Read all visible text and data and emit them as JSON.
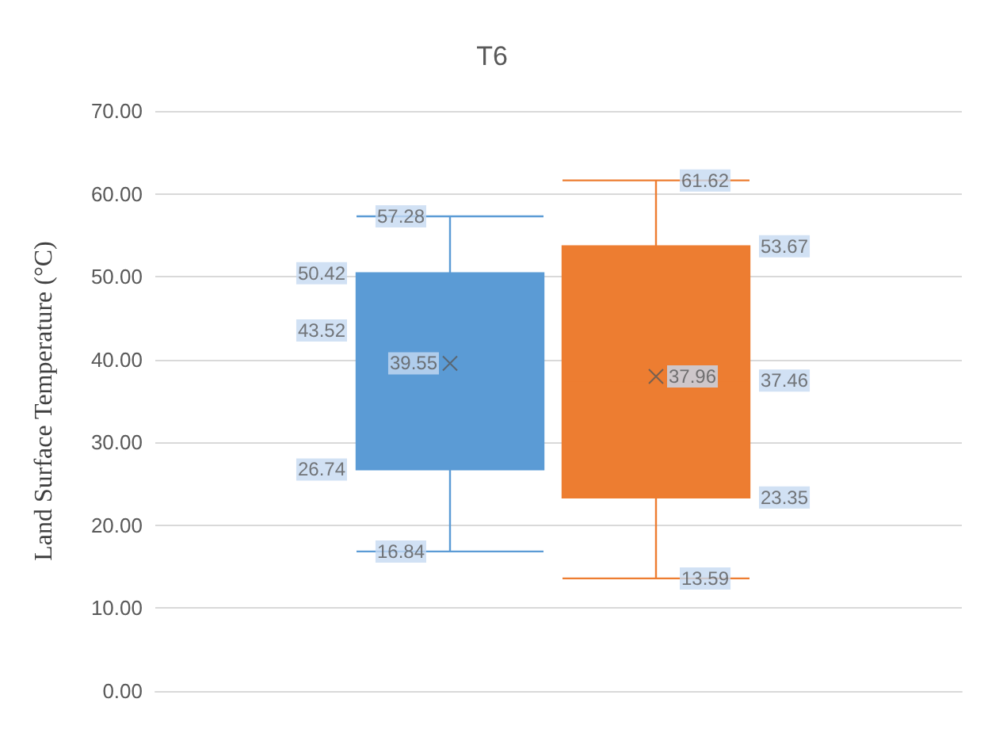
{
  "chart_data": {
    "type": "box",
    "title": "T6",
    "ylabel": "Land Surface Temperature (°C)",
    "categories": [
      null,
      null
    ],
    "colors": [
      "#5b9bd5",
      "#ed7d31"
    ],
    "boxes": [
      {
        "low": 16.84,
        "q1": 26.74,
        "median": 43.52,
        "q3": 50.42,
        "high": 57.28,
        "mean": 39.55
      },
      {
        "low": 13.59,
        "q1": 23.35,
        "median": 37.46,
        "q3": 53.67,
        "high": 61.62,
        "mean": 37.96
      }
    ],
    "annotations": [
      {
        "text": "16.84",
        "y": 16.84
      },
      {
        "text": "26.74",
        "y": 26.74
      },
      {
        "text": "43.52",
        "y": 43.52
      },
      {
        "text": "50.42",
        "y": 50.42
      },
      {
        "text": "57.28",
        "y": 57.28
      },
      {
        "text": "39.55",
        "y": 39.55
      },
      {
        "text": "13.59",
        "y": 13.59
      },
      {
        "text": "23.35",
        "y": 23.35
      },
      {
        "text": "37.46",
        "y": 37.46
      },
      {
        "text": "53.67",
        "y": 53.67
      },
      {
        "text": "61.62",
        "y": 61.62
      },
      {
        "text": "37.96",
        "y": 37.96
      }
    ],
    "ylim": [
      0,
      70
    ],
    "yticks": [
      {
        "value": 0,
        "label": "0.00"
      },
      {
        "value": 10,
        "label": "10.00"
      },
      {
        "value": 20,
        "label": "20.00"
      },
      {
        "value": 30,
        "label": "30.00"
      },
      {
        "value": 40,
        "label": "40.00"
      },
      {
        "value": 50,
        "label": "50.00"
      },
      {
        "value": 60,
        "label": "60.00"
      },
      {
        "value": 70,
        "label": "70.00"
      }
    ],
    "grid": "y",
    "marker": "cross",
    "tick_labels": "y"
  }
}
